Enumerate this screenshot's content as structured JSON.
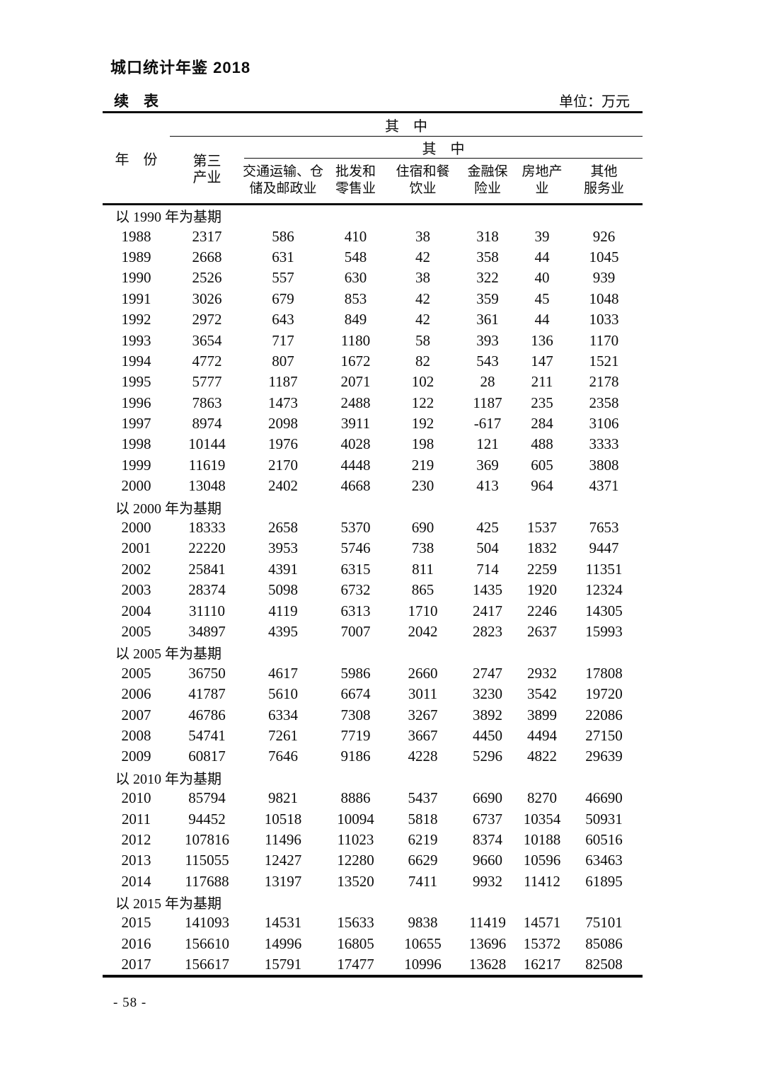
{
  "page": {
    "book_title": "城口统计年鉴 2018",
    "page_number": "- 58 -"
  },
  "table": {
    "continued_label": "续　表",
    "unit_label": "单位：万元",
    "header": {
      "year_label": "年　份",
      "among_which_level1": "其　中",
      "among_which_level2": "其　中",
      "tertiary_industry": [
        "第三",
        "产业"
      ],
      "subcols": [
        [
          "交通运输、仓",
          "储及邮政业"
        ],
        [
          "批发和",
          "零售业"
        ],
        [
          "住宿和餐",
          "饮业"
        ],
        [
          "金融保",
          "险业"
        ],
        [
          "房地产",
          "业"
        ],
        [
          "其他",
          "服务业"
        ]
      ]
    },
    "sections": [
      {
        "label": "以 1990 年为基期",
        "rows": [
          [
            "1988",
            "2317",
            "586",
            "410",
            "38",
            "318",
            "39",
            "926"
          ],
          [
            "1989",
            "2668",
            "631",
            "548",
            "42",
            "358",
            "44",
            "1045"
          ],
          [
            "1990",
            "2526",
            "557",
            "630",
            "38",
            "322",
            "40",
            "939"
          ],
          [
            "1991",
            "3026",
            "679",
            "853",
            "42",
            "359",
            "45",
            "1048"
          ],
          [
            "1992",
            "2972",
            "643",
            "849",
            "42",
            "361",
            "44",
            "1033"
          ],
          [
            "1993",
            "3654",
            "717",
            "1180",
            "58",
            "393",
            "136",
            "1170"
          ],
          [
            "1994",
            "4772",
            "807",
            "1672",
            "82",
            "543",
            "147",
            "1521"
          ],
          [
            "1995",
            "5777",
            "1187",
            "2071",
            "102",
            "28",
            "211",
            "2178"
          ],
          [
            "1996",
            "7863",
            "1473",
            "2488",
            "122",
            "1187",
            "235",
            "2358"
          ],
          [
            "1997",
            "8974",
            "2098",
            "3911",
            "192",
            "-617",
            "284",
            "3106"
          ],
          [
            "1998",
            "10144",
            "1976",
            "4028",
            "198",
            "121",
            "488",
            "3333"
          ],
          [
            "1999",
            "11619",
            "2170",
            "4448",
            "219",
            "369",
            "605",
            "3808"
          ],
          [
            "2000",
            "13048",
            "2402",
            "4668",
            "230",
            "413",
            "964",
            "4371"
          ]
        ]
      },
      {
        "label": "以 2000 年为基期",
        "rows": [
          [
            "2000",
            "18333",
            "2658",
            "5370",
            "690",
            "425",
            "1537",
            "7653"
          ],
          [
            "2001",
            "22220",
            "3953",
            "5746",
            "738",
            "504",
            "1832",
            "9447"
          ],
          [
            "2002",
            "25841",
            "4391",
            "6315",
            "811",
            "714",
            "2259",
            "11351"
          ],
          [
            "2003",
            "28374",
            "5098",
            "6732",
            "865",
            "1435",
            "1920",
            "12324"
          ],
          [
            "2004",
            "31110",
            "4119",
            "6313",
            "1710",
            "2417",
            "2246",
            "14305"
          ],
          [
            "2005",
            "34897",
            "4395",
            "7007",
            "2042",
            "2823",
            "2637",
            "15993"
          ]
        ]
      },
      {
        "label": "以 2005 年为基期",
        "rows": [
          [
            "2005",
            "36750",
            "4617",
            "5986",
            "2660",
            "2747",
            "2932",
            "17808"
          ],
          [
            "2006",
            "41787",
            "5610",
            "6674",
            "3011",
            "3230",
            "3542",
            "19720"
          ],
          [
            "2007",
            "46786",
            "6334",
            "7308",
            "3267",
            "3892",
            "3899",
            "22086"
          ],
          [
            "2008",
            "54741",
            "7261",
            "7719",
            "3667",
            "4450",
            "4494",
            "27150"
          ],
          [
            "2009",
            "60817",
            "7646",
            "9186",
            "4228",
            "5296",
            "4822",
            "29639"
          ]
        ]
      },
      {
        "label": "以 2010 年为基期",
        "rows": [
          [
            "2010",
            "85794",
            "9821",
            "8886",
            "5437",
            "6690",
            "8270",
            "46690"
          ],
          [
            "2011",
            "94452",
            "10518",
            "10094",
            "5818",
            "6737",
            "10354",
            "50931"
          ],
          [
            "2012",
            "107816",
            "11496",
            "11023",
            "6219",
            "8374",
            "10188",
            "60516"
          ],
          [
            "2013",
            "115055",
            "12427",
            "12280",
            "6629",
            "9660",
            "10596",
            "63463"
          ],
          [
            "2014",
            "117688",
            "13197",
            "13520",
            "7411",
            "9932",
            "11412",
            "61895"
          ]
        ]
      },
      {
        "label": "以 2015 年为基期",
        "rows": [
          [
            "2015",
            "141093",
            "14531",
            "15633",
            "9838",
            "11419",
            "14571",
            "75101"
          ],
          [
            "2016",
            "156610",
            "14996",
            "16805",
            "10655",
            "13696",
            "15372",
            "85086"
          ],
          [
            "2017",
            "156617",
            "15791",
            "17477",
            "10996",
            "13628",
            "16217",
            "82508"
          ]
        ]
      }
    ]
  }
}
